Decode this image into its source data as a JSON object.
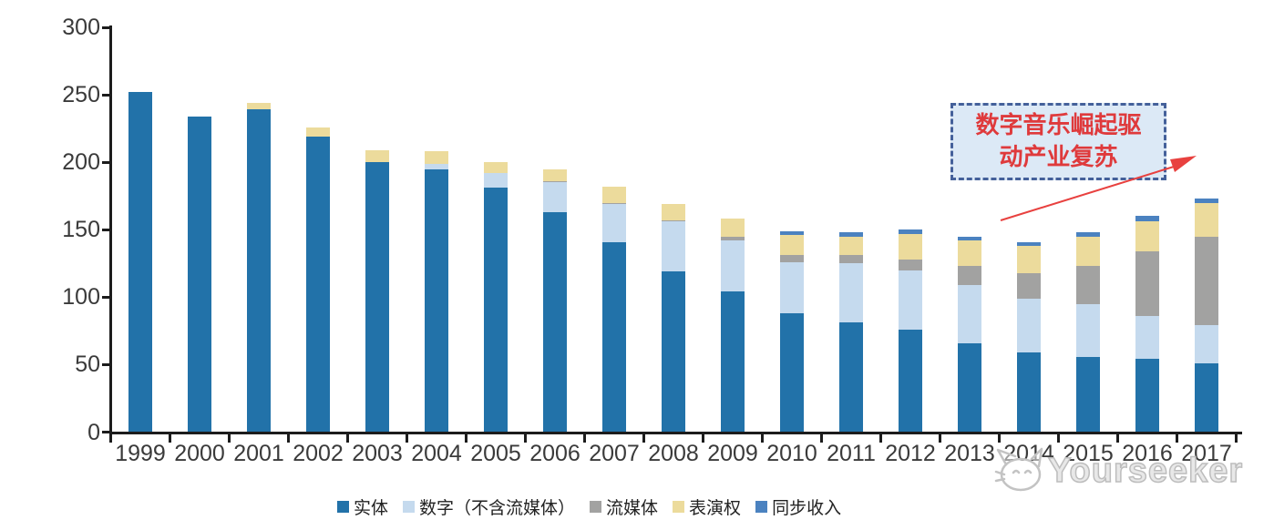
{
  "chart_data": {
    "type": "bar",
    "subtype": "stacked-vertical",
    "title": "",
    "xlabel": "",
    "ylabel": "",
    "ylim": [
      0,
      300
    ],
    "yticks": [
      0,
      50,
      100,
      150,
      200,
      250,
      300
    ],
    "grid": false,
    "legend_position": "bottom",
    "categories": [
      "1999",
      "2000",
      "2001",
      "2002",
      "2003",
      "2004",
      "2005",
      "2006",
      "2007",
      "2008",
      "2009",
      "2010",
      "2011",
      "2012",
      "2013",
      "2014",
      "2015",
      "2016",
      "2017"
    ],
    "series": [
      {
        "key": "physical",
        "name": "实体",
        "color": "#2272A9",
        "values": [
          252,
          234,
          239,
          219,
          200,
          195,
          181,
          163,
          141,
          119,
          104,
          88,
          81,
          76,
          66,
          59,
          56,
          54,
          51
        ]
      },
      {
        "key": "digital-excl-streaming",
        "name": "数字（不含流媒体）",
        "color": "#C5DAEE",
        "values": [
          0,
          0,
          0,
          0,
          0,
          4,
          11,
          22,
          28,
          37,
          38,
          38,
          44,
          44,
          43,
          40,
          39,
          32,
          28
        ]
      },
      {
        "key": "streaming",
        "name": "流媒体",
        "color": "#A2A2A1",
        "values": [
          0,
          0,
          0,
          0,
          0,
          0,
          0,
          1,
          1,
          1,
          3,
          5,
          6,
          8,
          14,
          19,
          28,
          48,
          66
        ]
      },
      {
        "key": "performance-rights",
        "name": "表演权",
        "color": "#ECDB9C",
        "values": [
          0,
          0,
          5,
          7,
          9,
          9,
          8,
          9,
          12,
          12,
          13,
          15,
          14,
          19,
          19,
          20,
          22,
          22,
          25
        ]
      },
      {
        "key": "synchronization",
        "name": "同步收入",
        "color": "#4B82C0",
        "values": [
          0,
          0,
          0,
          0,
          0,
          0,
          0,
          0,
          0,
          0,
          0,
          3,
          3,
          3,
          3,
          3,
          3,
          4,
          3
        ]
      }
    ]
  },
  "annotation": {
    "text": "数字音乐崛起驱动产业复苏",
    "line1": "数字音乐崛起驱",
    "line2": "动产业复苏",
    "text_color": "#DF3A3C",
    "box_fill": "#DCE9F6",
    "box_border": "#44609A",
    "arrow_color": "#E8413F"
  },
  "watermark": {
    "text": "Yourseeker"
  },
  "axis": {
    "line_color": "#1c1c1c",
    "label_color": "#3a3a3a"
  }
}
